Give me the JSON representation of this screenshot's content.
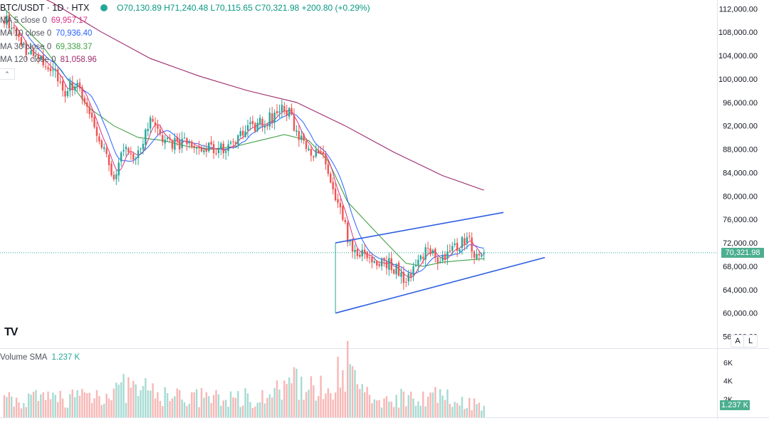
{
  "header": {
    "symbol": "BTC/USDT · 1D · HTX",
    "ohlc_text": "O70,130.89  H71,240.48  L70,115.65  C70,321.98  +200.80 (+0.29%)"
  },
  "indicators": [
    {
      "name": "MA 5 close 0",
      "value": "69,957.17",
      "color": "#d63384"
    },
    {
      "name": "MA 10 close 0",
      "value": "70,936.40",
      "color": "#2962ff"
    },
    {
      "name": "MA 30 close 0",
      "value": "69,338.37",
      "color": "#43a047"
    },
    {
      "name": "MA 120 close 0",
      "value": "81,058.96",
      "color": "#9c2a6b"
    }
  ],
  "price_axis": {
    "ticks": [
      "112,000.00",
      "108,000.00",
      "104,000.00",
      "100,000.00",
      "96,000.00",
      "92,000.00",
      "88,000.00",
      "84,000.00",
      "80,000.00",
      "76,000.00",
      "72,000.00",
      "68,000.00",
      "64,000.00",
      "60,000.00",
      "56,000.00"
    ],
    "last_price_label": "70,321.98"
  },
  "volume": {
    "label": "Volume SMA",
    "value": "1.237 K",
    "ticks": [
      "6K",
      "4K",
      "2K"
    ],
    "sma_tag": "1.237 K"
  },
  "buttons": {
    "auto": "A",
    "log": "L"
  },
  "logo_text": "TV",
  "colors": {
    "up": "#26a69a",
    "down": "#ef5350",
    "vol_up": "#a6dbd3",
    "vol_down": "#f7b7b5",
    "trendline": "#2f5fe0",
    "ma120": "#9c2a6b",
    "ma30": "#43a047",
    "ma10": "#2962ff",
    "ma5": "#d63384"
  },
  "chart_data": {
    "type": "candlestick",
    "title": "BTC/USDT · 1D · HTX",
    "y_range": [
      54000,
      113500
    ],
    "volume_range": [
      0,
      7000
    ],
    "anchors": [
      [
        0,
        110500
      ],
      [
        10,
        104500
      ],
      [
        20,
        101500
      ],
      [
        25,
        98000
      ],
      [
        30,
        99500
      ],
      [
        33,
        96000
      ],
      [
        37,
        92000
      ],
      [
        40,
        88500
      ],
      [
        43,
        85500
      ],
      [
        45,
        83500
      ],
      [
        48,
        86500
      ],
      [
        51,
        88000
      ],
      [
        54,
        87000
      ],
      [
        57,
        89500
      ],
      [
        60,
        92500
      ],
      [
        63,
        90500
      ],
      [
        66,
        89500
      ],
      [
        70,
        89000
      ],
      [
        75,
        89000
      ],
      [
        80,
        88000
      ],
      [
        85,
        88000
      ],
      [
        90,
        88000
      ],
      [
        95,
        90000
      ],
      [
        100,
        91500
      ],
      [
        105,
        92500
      ],
      [
        110,
        93500
      ],
      [
        114,
        95000
      ],
      [
        117,
        94000
      ],
      [
        120,
        91000
      ],
      [
        124,
        89000
      ],
      [
        128,
        87000
      ],
      [
        131,
        86500
      ],
      [
        133,
        84000
      ],
      [
        136,
        79000
      ],
      [
        139,
        76000
      ],
      [
        141,
        73000
      ],
      [
        143,
        70000
      ],
      [
        146,
        70500
      ],
      [
        149,
        69500
      ],
      [
        152,
        69000
      ],
      [
        155,
        68500
      ],
      [
        158,
        68500
      ],
      [
        161,
        67500
      ],
      [
        164,
        66000
      ],
      [
        167,
        67000
      ],
      [
        170,
        68500
      ],
      [
        173,
        71000
      ],
      [
        176,
        70500
      ],
      [
        179,
        69000
      ],
      [
        182,
        70500
      ],
      [
        185,
        71000
      ],
      [
        188,
        72000
      ],
      [
        190,
        73500
      ],
      [
        192,
        71000
      ],
      [
        194,
        70000
      ],
      [
        196,
        70500
      ],
      [
        197,
        70300
      ]
    ],
    "ma120": [
      [
        0,
        117000
      ],
      [
        20,
        113000
      ],
      [
        40,
        108000
      ],
      [
        60,
        103500
      ],
      [
        80,
        100500
      ],
      [
        100,
        98000
      ],
      [
        120,
        96000
      ],
      [
        140,
        92000
      ],
      [
        160,
        87500
      ],
      [
        180,
        83500
      ],
      [
        197,
        81000
      ]
    ],
    "ma30": [
      [
        0,
        112000
      ],
      [
        15,
        106000
      ],
      [
        25,
        100500
      ],
      [
        35,
        95000
      ],
      [
        45,
        92000
      ],
      [
        55,
        90000
      ],
      [
        65,
        89500
      ],
      [
        75,
        88500
      ],
      [
        85,
        88000
      ],
      [
        95,
        88500
      ],
      [
        105,
        89500
      ],
      [
        115,
        90500
      ],
      [
        125,
        89500
      ],
      [
        133,
        86000
      ],
      [
        141,
        79000
      ],
      [
        150,
        75000
      ],
      [
        158,
        71500
      ],
      [
        165,
        68500
      ],
      [
        172,
        68000
      ],
      [
        180,
        68700
      ],
      [
        188,
        69000
      ],
      [
        197,
        69300
      ]
    ],
    "volume_anchors": [
      [
        0,
        1800
      ],
      [
        20,
        2000
      ],
      [
        45,
        2800
      ],
      [
        50,
        3200
      ],
      [
        70,
        2200
      ],
      [
        90,
        2000
      ],
      [
        110,
        2400
      ],
      [
        120,
        3800
      ],
      [
        130,
        3000
      ],
      [
        135,
        4000
      ],
      [
        138,
        6300
      ],
      [
        141,
        5500
      ],
      [
        150,
        1800
      ],
      [
        160,
        2000
      ],
      [
        170,
        2600
      ],
      [
        180,
        2100
      ],
      [
        190,
        1700
      ],
      [
        197,
        1237
      ]
    ],
    "trendlines": [
      {
        "name": "upper",
        "from": [
          136,
          72000
        ],
        "to": [
          205,
          77200
        ]
      },
      {
        "name": "lower",
        "from": [
          136,
          60000
        ],
        "to": [
          222,
          69500
        ]
      }
    ],
    "last_price": 70321.98,
    "bars": 198
  }
}
